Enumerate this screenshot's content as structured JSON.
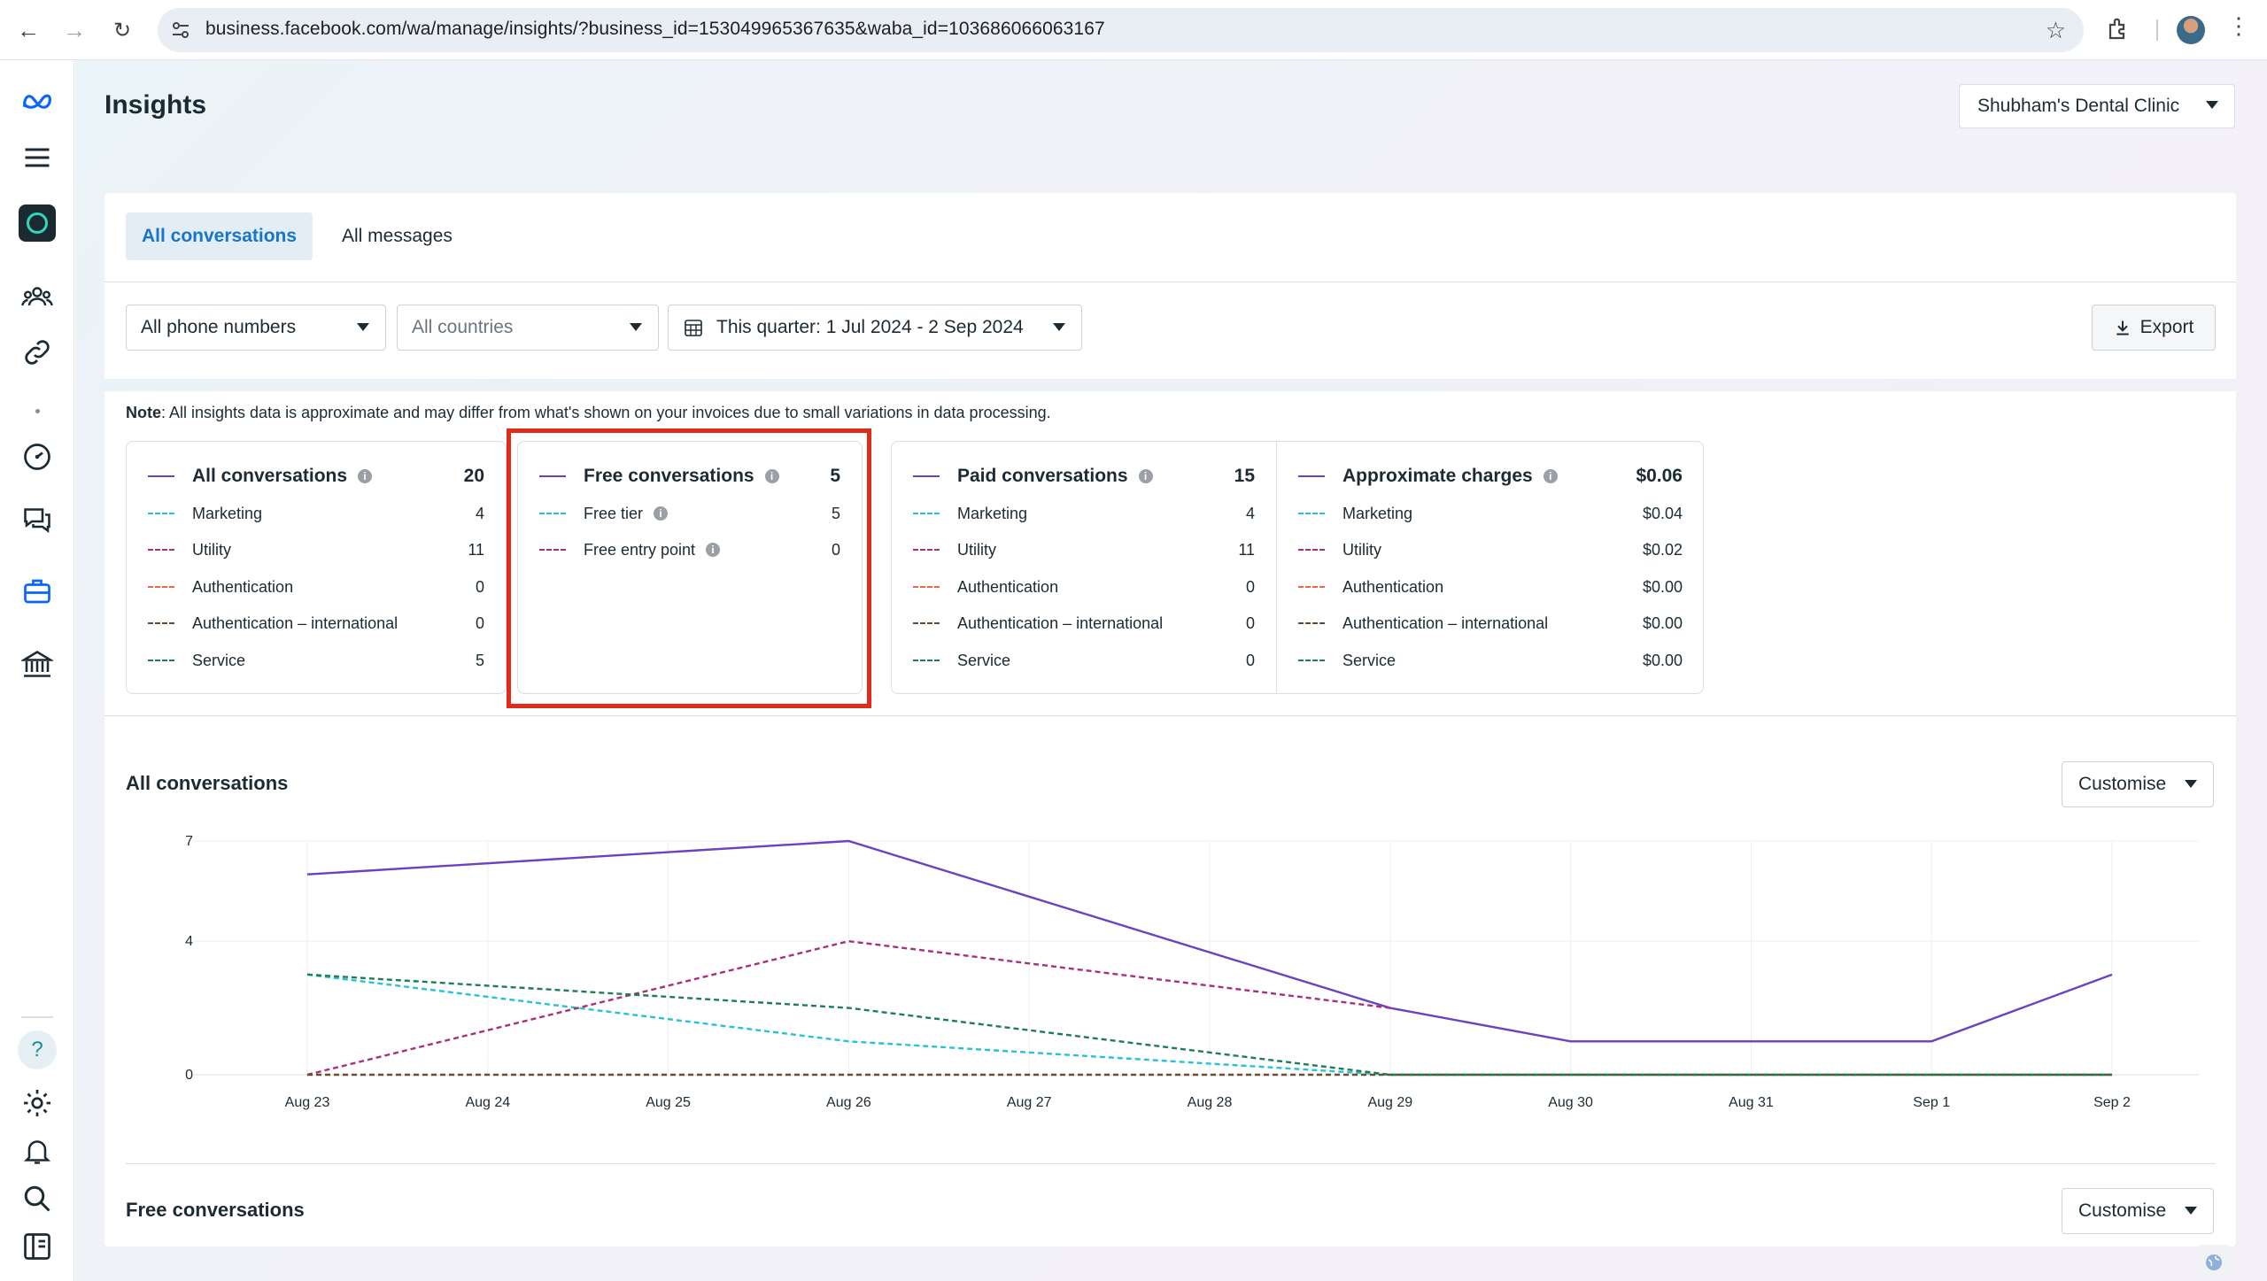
{
  "browser": {
    "url": "business.facebook.com/wa/manage/insights/?business_id=153049965367635&waba_id=103686066063167"
  },
  "page": {
    "title": "Insights",
    "account": "Shubham's Dental Clinic"
  },
  "tabs": [
    {
      "label": "All conversations",
      "active": true
    },
    {
      "label": "All messages",
      "active": false
    }
  ],
  "filters": {
    "phone": "All phone numbers",
    "countries": "All countries",
    "date_range": "This quarter: 1 Jul 2024 - 2 Sep 2024",
    "export": "Export"
  },
  "note": {
    "bold": "Note",
    "text": ": All insights data is approximate and may differ from what's shown on your invoices due to small variations in data processing."
  },
  "summary": {
    "all": {
      "title": "All conversations",
      "total": "20",
      "rows": [
        {
          "label": "Marketing",
          "value": "4",
          "color": "#25c3d3"
        },
        {
          "label": "Utility",
          "value": "11",
          "color": "#a8307c"
        },
        {
          "label": "Authentication",
          "value": "0",
          "color": "#f0673a"
        },
        {
          "label": "Authentication – international",
          "value": "0",
          "color": "#6b4c2f"
        },
        {
          "label": "Service",
          "value": "5",
          "color": "#1f7d55"
        }
      ]
    },
    "free": {
      "title": "Free conversations",
      "total": "5",
      "rows": [
        {
          "label": "Free tier",
          "value": "5",
          "color": "#25c3d3"
        },
        {
          "label": "Free entry point",
          "value": "0",
          "color": "#a8307c"
        }
      ]
    },
    "paid": {
      "title": "Paid conversations",
      "total": "15",
      "rows": [
        {
          "label": "Marketing",
          "value": "4",
          "color": "#25c3d3"
        },
        {
          "label": "Utility",
          "value": "11",
          "color": "#a8307c"
        },
        {
          "label": "Authentication",
          "value": "0",
          "color": "#f0673a"
        },
        {
          "label": "Authentication – international",
          "value": "0",
          "color": "#6b4c2f"
        },
        {
          "label": "Service",
          "value": "0",
          "color": "#1f7d55"
        }
      ]
    },
    "charges": {
      "title": "Approximate charges",
      "total": "$0.06",
      "rows": [
        {
          "label": "Marketing",
          "value": "$0.04",
          "color": "#25c3d3"
        },
        {
          "label": "Utility",
          "value": "$0.02",
          "color": "#a8307c"
        },
        {
          "label": "Authentication",
          "value": "$0.00",
          "color": "#f0673a"
        },
        {
          "label": "Authentication – international",
          "value": "$0.00",
          "color": "#6b4c2f"
        },
        {
          "label": "Service",
          "value": "$0.00",
          "color": "#1f7d55"
        }
      ]
    }
  },
  "sections": {
    "all_title": "All conversations",
    "free_title": "Free conversations",
    "customise": "Customise"
  },
  "chart_data": {
    "type": "line",
    "title": "All conversations",
    "categories": [
      "Aug 23",
      "Aug 24",
      "Aug 25",
      "Aug 26",
      "Aug 27",
      "Aug 28",
      "Aug 29",
      "Aug 30",
      "Aug 31",
      "Sep 1",
      "Sep 2"
    ],
    "yticks": [
      "7",
      "4",
      "0"
    ],
    "ylim": [
      0,
      7
    ],
    "series": [
      {
        "name": "All conversations",
        "style": "solid",
        "color": "#6a42c2",
        "values": [
          6,
          null,
          null,
          7,
          null,
          null,
          2,
          1,
          1,
          1,
          3
        ]
      },
      {
        "name": "Marketing",
        "style": "dashed",
        "color": "#25c3d3",
        "values": [
          3,
          null,
          null,
          1,
          null,
          null,
          0,
          0,
          0,
          0,
          0
        ]
      },
      {
        "name": "Utility",
        "style": "dashed",
        "color": "#a8307c",
        "values": [
          0,
          null,
          null,
          4,
          null,
          null,
          2,
          null,
          null,
          null,
          null
        ]
      },
      {
        "name": "Authentication",
        "style": "dashed",
        "color": "#6b4c2f",
        "values": [
          0,
          null,
          null,
          0,
          null,
          null,
          0,
          0,
          0,
          0,
          0
        ]
      },
      {
        "name": "Service",
        "style": "dashed",
        "color": "#1f7d55",
        "values": [
          3,
          null,
          null,
          2,
          null,
          null,
          0,
          0,
          0,
          0,
          0
        ]
      }
    ]
  }
}
